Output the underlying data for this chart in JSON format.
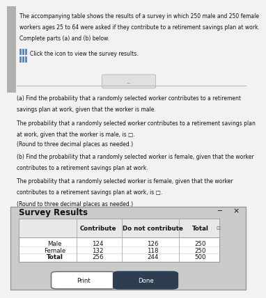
{
  "top_text_line1": "The accompanying table shows the results of a survey in which 250 male and 250 female",
  "top_text_line2": "workers ages 25 to 64 were asked if they contribute to a retirement savings plan at work.",
  "top_text_line3": "Complete parts (a) and (b) below.",
  "icon_label": "Click the icon to view the survey results.",
  "ellipsis": "...",
  "part_a_q1": "(a) Find the probability that a randomly selected worker contributes to a retirement",
  "part_a_q2": "savings plan at work, given that the worker is male.",
  "part_a_a1": "The probability that a randomly selected worker contributes to a retirement savings plan",
  "part_a_a2": "at work, given that the worker is male, is □.",
  "part_a_a3": "(Round to three decimal places as needed.)",
  "part_b_q1": "(b) Find the probability that a randomly selected worker is female, given that the worker",
  "part_b_q2": "contributes to a retirement savings plan at work.",
  "part_b_a1": "The probability that a randomly selected worker is female, given that the worker",
  "part_b_a2": "contributes to a retirement savings plan at work, is □.",
  "part_b_a3": "(Round to three decimal places as needed.)",
  "survey_title": "Survey Results",
  "col_headers": [
    "Contribute",
    "Do not contribute",
    "Total"
  ],
  "row_headers": [
    "Male",
    "Female",
    "Total"
  ],
  "table_data": [
    [
      "124",
      "126",
      "250"
    ],
    [
      "132",
      "118",
      "250"
    ],
    [
      "256",
      "244",
      "500"
    ]
  ],
  "print_btn": "Print",
  "done_btn": "Done",
  "bg_top": "#d8d8d8",
  "bg_mid": "#f2f2f2",
  "bg_dialog": "#cbcbcb",
  "bg_dialog_inner": "#e0e0e0",
  "left_bar_color": "#b0b0b0",
  "icon_color": "#5577bb",
  "text_dark": "#111111",
  "table_bg": "#ffffff",
  "header_bg": "#e8e8e8",
  "done_btn_bg": "#2d3e50",
  "border_color": "#999999",
  "line_color": "#cccccc",
  "sf": 5.5,
  "tf": 6.2,
  "title_f": 8.5
}
